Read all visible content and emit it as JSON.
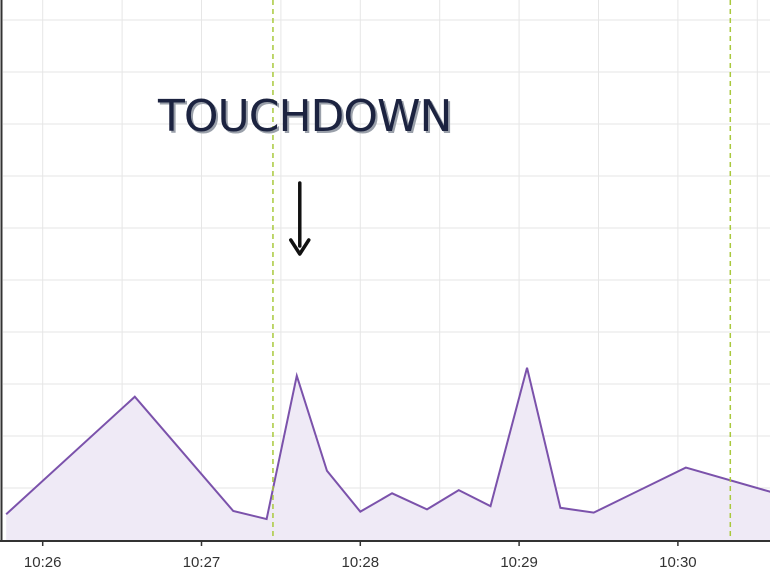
{
  "chart_data": {
    "type": "area",
    "x_tick_labels": [
      "10:26",
      "10:27",
      "10:28",
      "10:29",
      "10:30"
    ],
    "x_tick_minutes": [
      626,
      627,
      628,
      629,
      630
    ],
    "xlim": [
      625.75,
      630.58
    ],
    "ylim": [
      0,
      10
    ],
    "grid": true,
    "series": [
      {
        "x": [
          625.77,
          626.58,
          627.2,
          627.41,
          627.6,
          627.79,
          628.0,
          628.2,
          628.42,
          628.62,
          628.82,
          629.05,
          629.26,
          629.47,
          630.05,
          630.58,
          630.69
        ],
        "values": [
          0.8,
          4.45,
          0.9,
          0.65,
          5.1,
          2.15,
          0.88,
          1.45,
          0.95,
          1.55,
          1.05,
          5.35,
          1.0,
          0.85,
          2.25,
          1.5,
          1.2
        ]
      }
    ],
    "vertical_markers": [
      627.45,
      630.33
    ],
    "annotations": [
      {
        "text": "TOUCHDOWN",
        "x": 627.6
      }
    ],
    "colors": {
      "line": "#7b52ab",
      "fill": "#efeaf6",
      "marker": "#a9c93c",
      "grid": "#e6e6e6",
      "axis": "#333333",
      "annotation_text": "#1c2340",
      "annotation_shadow": "#9aa0aa",
      "arrow": "#111111"
    }
  }
}
